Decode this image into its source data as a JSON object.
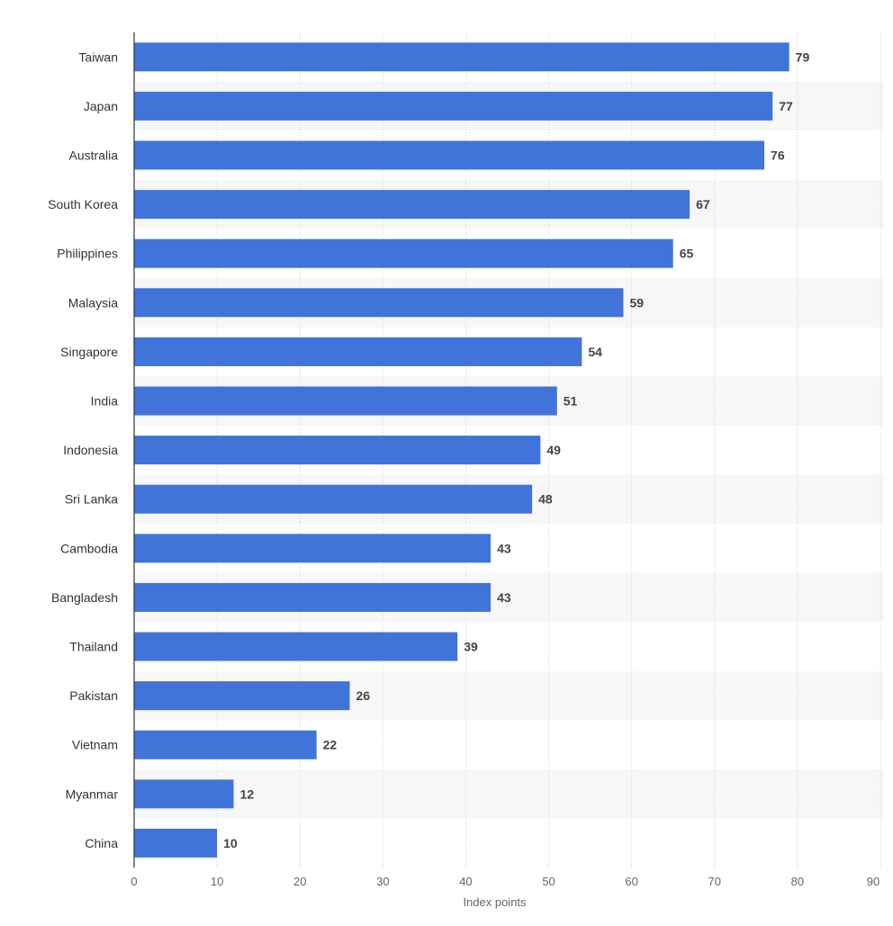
{
  "chart_data": {
    "type": "bar",
    "orientation": "horizontal",
    "categories": [
      "Taiwan",
      "Japan",
      "Australia",
      "South Korea",
      "Philippines",
      "Malaysia",
      "Singapore",
      "India",
      "Indonesia",
      "Sri Lanka",
      "Cambodia",
      "Bangladesh",
      "Thailand",
      "Pakistan",
      "Vietnam",
      "Myanmar",
      "China"
    ],
    "values": [
      79,
      77,
      76,
      67,
      65,
      59,
      54,
      51,
      49,
      48,
      43,
      43,
      39,
      26,
      22,
      12,
      10
    ],
    "title": "",
    "xlabel": "Index points",
    "ylabel": "",
    "xlim": [
      0,
      90
    ],
    "xticks": [
      0,
      10,
      20,
      30,
      40,
      50,
      60,
      70,
      80,
      90
    ],
    "grid": true,
    "legend": "none",
    "data_labels": true,
    "colors": {
      "bar": "#4074d8",
      "band": "#f7f7f7",
      "grid": "#cfcfcf",
      "axis": "#333333"
    }
  }
}
